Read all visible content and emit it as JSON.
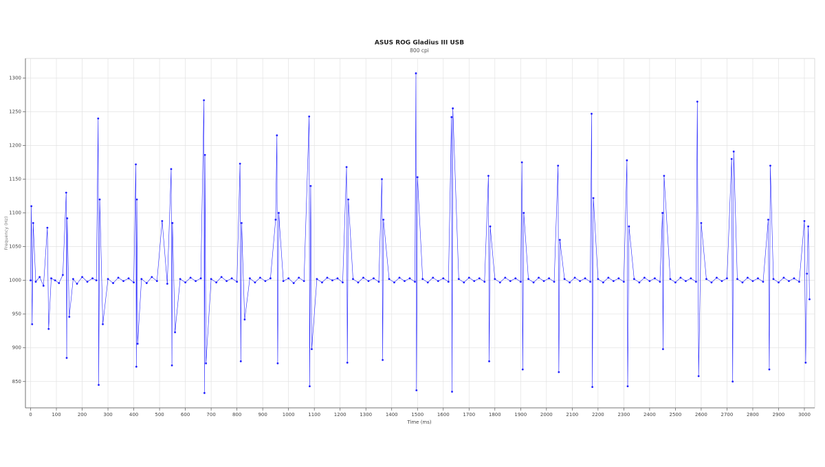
{
  "chart_data": {
    "type": "line",
    "title": "ASUS ROG Gladius III USB",
    "subtitle": "800 cpi",
    "x_label": "Time (ms)",
    "y_label": "Frequency (Hz)",
    "xlim": [
      -20,
      3040
    ],
    "ylim": [
      811,
      1329
    ],
    "xticks": [
      0,
      100,
      200,
      300,
      400,
      500,
      600,
      700,
      800,
      900,
      1000,
      1100,
      1200,
      1300,
      1400,
      1500,
      1600,
      1700,
      1800,
      1900,
      2000,
      2100,
      2200,
      2300,
      2400,
      2500,
      2600,
      2700,
      2800,
      2900,
      3000
    ],
    "yticks": [
      850,
      900,
      950,
      1000,
      1050,
      1100,
      1150,
      1200,
      1250,
      1300
    ],
    "grid": true,
    "color": "#1f1fff",
    "x": [
      0,
      3,
      6,
      10,
      20,
      35,
      50,
      65,
      70,
      80,
      95,
      110,
      125,
      138,
      140,
      142,
      150,
      165,
      180,
      200,
      220,
      240,
      255,
      262,
      264,
      268,
      280,
      300,
      320,
      340,
      360,
      380,
      400,
      408,
      410,
      412,
      415,
      430,
      450,
      470,
      490,
      510,
      530,
      545,
      548,
      550,
      560,
      580,
      600,
      620,
      640,
      660,
      672,
      674,
      676,
      680,
      700,
      720,
      740,
      760,
      780,
      800,
      812,
      815,
      818,
      830,
      850,
      870,
      890,
      910,
      930,
      950,
      955,
      958,
      962,
      980,
      1000,
      1020,
      1040,
      1060,
      1080,
      1082,
      1086,
      1090,
      1110,
      1130,
      1150,
      1170,
      1190,
      1210,
      1225,
      1228,
      1232,
      1250,
      1270,
      1290,
      1310,
      1330,
      1350,
      1362,
      1365,
      1368,
      1390,
      1410,
      1430,
      1450,
      1470,
      1490,
      1494,
      1496,
      1500,
      1520,
      1540,
      1560,
      1580,
      1600,
      1620,
      1632,
      1634,
      1637,
      1660,
      1680,
      1700,
      1720,
      1740,
      1760,
      1775,
      1778,
      1782,
      1800,
      1820,
      1840,
      1860,
      1880,
      1900,
      1905,
      1908,
      1912,
      1930,
      1950,
      1970,
      1990,
      2010,
      2030,
      2045,
      2048,
      2052,
      2070,
      2090,
      2110,
      2130,
      2150,
      2170,
      2175,
      2178,
      2182,
      2200,
      2220,
      2240,
      2260,
      2280,
      2300,
      2312,
      2315,
      2320,
      2340,
      2360,
      2380,
      2400,
      2420,
      2440,
      2450,
      2452,
      2456,
      2480,
      2500,
      2520,
      2540,
      2560,
      2580,
      2585,
      2590,
      2600,
      2620,
      2640,
      2660,
      2680,
      2700,
      2718,
      2722,
      2726,
      2740,
      2760,
      2780,
      2800,
      2820,
      2840,
      2860,
      2864,
      2868,
      2880,
      2900,
      2920,
      2940,
      2960,
      2980,
      3000,
      3005,
      3010,
      3015,
      3020
    ],
    "values": [
      1000,
      1110,
      935,
      1085,
      998,
      1005,
      992,
      1078,
      928,
      1003,
      1000,
      996,
      1008,
      1130,
      885,
      1092,
      946,
      1002,
      995,
      1005,
      998,
      1003,
      1000,
      1240,
      845,
      1120,
      935,
      1002,
      996,
      1004,
      999,
      1003,
      997,
      1172,
      872,
      1120,
      906,
      1002,
      996,
      1005,
      999,
      1088,
      995,
      1165,
      874,
      1085,
      923,
      1002,
      997,
      1004,
      999,
      1003,
      1267,
      833,
      1186,
      877,
      1002,
      997,
      1005,
      999,
      1003,
      998,
      1173,
      880,
      1085,
      942,
      1003,
      997,
      1004,
      999,
      1003,
      1090,
      1215,
      877,
      1100,
      999,
      1003,
      996,
      1004,
      999,
      1243,
      843,
      1140,
      898,
      1002,
      997,
      1004,
      1000,
      1003,
      997,
      1168,
      878,
      1120,
      1002,
      997,
      1004,
      999,
      1003,
      998,
      1150,
      882,
      1090,
      1002,
      997,
      1004,
      999,
      1003,
      998,
      1307,
      837,
      1153,
      1002,
      997,
      1004,
      999,
      1003,
      998,
      1242,
      835,
      1255,
      1002,
      997,
      1004,
      999,
      1003,
      998,
      1155,
      880,
      1080,
      1002,
      997,
      1004,
      999,
      1003,
      998,
      1175,
      868,
      1100,
      1002,
      997,
      1004,
      999,
      1003,
      998,
      1170,
      864,
      1060,
      1002,
      997,
      1004,
      999,
      1003,
      998,
      1247,
      842,
      1122,
      1002,
      997,
      1004,
      999,
      1003,
      998,
      1178,
      843,
      1080,
      1002,
      997,
      1004,
      999,
      1003,
      998,
      1100,
      898,
      1155,
      1002,
      997,
      1004,
      999,
      1003,
      998,
      1265,
      858,
      1085,
      1002,
      997,
      1004,
      999,
      1003,
      1180,
      850,
      1191,
      1002,
      997,
      1004,
      999,
      1003,
      998,
      1090,
      868,
      1170,
      1002,
      997,
      1004,
      999,
      1003,
      998,
      1088,
      878,
      1010,
      1080,
      972
    ]
  }
}
